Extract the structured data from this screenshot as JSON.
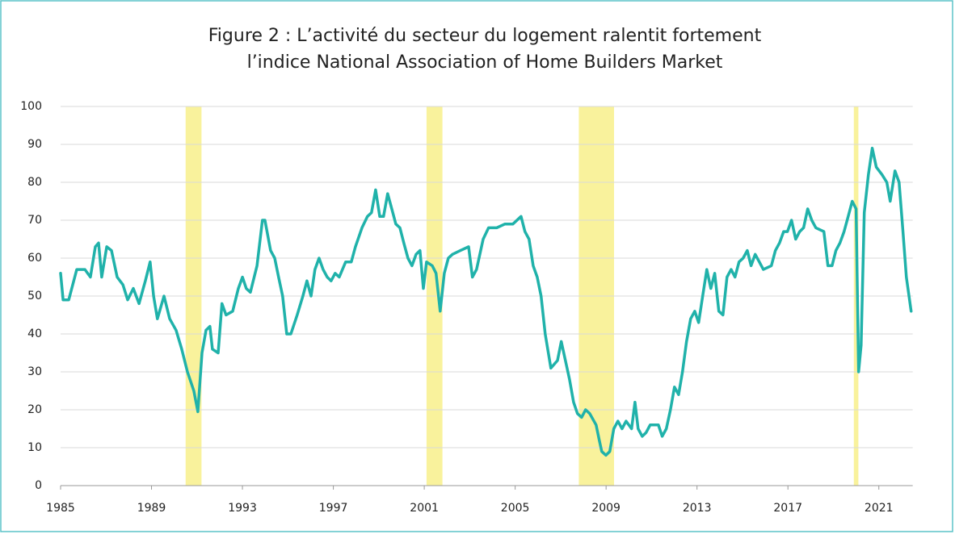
{
  "chart_data": {
    "type": "line",
    "title": [
      "Figure 2 : L’activité du secteur du logement ralentit fortement",
      "l’indice National Association of Home Builders Market"
    ],
    "x": [
      1985.0,
      1985.11,
      1985.36,
      1985.71,
      1986.07,
      1986.31,
      1986.53,
      1986.67,
      1986.81,
      1987.03,
      1987.24,
      1987.49,
      1987.74,
      1987.95,
      1988.2,
      1988.45,
      1988.73,
      1988.94,
      1989.09,
      1989.26,
      1989.55,
      1989.8,
      1990.08,
      1990.33,
      1990.58,
      1990.86,
      1991.04,
      1991.22,
      1991.4,
      1991.57,
      1991.68,
      1991.93,
      1992.1,
      1992.28,
      1992.57,
      1992.82,
      1993.0,
      1993.17,
      1993.35,
      1993.64,
      1993.88,
      1993.99,
      1994.24,
      1994.42,
      1994.59,
      1994.77,
      1994.95,
      1995.13,
      1995.41,
      1995.66,
      1995.84,
      1996.02,
      1996.19,
      1996.37,
      1996.55,
      1996.73,
      1996.9,
      1997.08,
      1997.26,
      1997.54,
      1997.79,
      1997.97,
      1998.26,
      1998.5,
      1998.68,
      1998.86,
      1999.04,
      1999.21,
      1999.39,
      1999.57,
      1999.75,
      1999.93,
      2000.1,
      2000.28,
      2000.46,
      2000.64,
      2000.81,
      2000.96,
      2001.1,
      2001.35,
      2001.52,
      2001.7,
      2001.88,
      2002.06,
      2002.24,
      2002.59,
      2002.95,
      2003.12,
      2003.3,
      2003.59,
      2003.83,
      2004.19,
      2004.55,
      2004.9,
      2005.26,
      2005.43,
      2005.61,
      2005.79,
      2005.97,
      2006.14,
      2006.32,
      2006.57,
      2006.86,
      2007.03,
      2007.21,
      2007.39,
      2007.57,
      2007.74,
      2007.92,
      2008.1,
      2008.28,
      2008.56,
      2008.7,
      2008.81,
      2008.99,
      2009.16,
      2009.34,
      2009.52,
      2009.7,
      2009.88,
      2010.12,
      2010.27,
      2010.41,
      2010.59,
      2010.76,
      2010.94,
      2011.3,
      2011.47,
      2011.65,
      2011.83,
      2012.01,
      2012.19,
      2012.36,
      2012.54,
      2012.72,
      2012.9,
      2013.07,
      2013.25,
      2013.43,
      2013.61,
      2013.78,
      2013.96,
      2014.14,
      2014.32,
      2014.5,
      2014.67,
      2014.85,
      2015.03,
      2015.21,
      2015.38,
      2015.56,
      2015.74,
      2015.92,
      2016.27,
      2016.45,
      2016.63,
      2016.81,
      2016.98,
      2017.16,
      2017.34,
      2017.52,
      2017.69,
      2017.87,
      2018.05,
      2018.23,
      2018.58,
      2018.76,
      2018.94,
      2019.11,
      2019.29,
      2019.47,
      2019.65,
      2019.83,
      2020.0,
      2020.11,
      2020.22,
      2020.36,
      2020.54,
      2020.71,
      2020.89,
      2021.14,
      2021.35,
      2021.5,
      2021.71,
      2021.89,
      2022.06,
      2022.21,
      2022.42
    ],
    "values": [
      56,
      49,
      49,
      57,
      57,
      55,
      63,
      64,
      55,
      63,
      62,
      55,
      53,
      49,
      52,
      48,
      54,
      59,
      50,
      44,
      50,
      44,
      41,
      36,
      30,
      25,
      19.5,
      35,
      41,
      42,
      36,
      35,
      48,
      45,
      46,
      52,
      55,
      52,
      51,
      58,
      70,
      70,
      62,
      60,
      55,
      50,
      40,
      40,
      45,
      50,
      54,
      50,
      57,
      60,
      57,
      55,
      54,
      56,
      55,
      59,
      59,
      63,
      68,
      71,
      72,
      78,
      71,
      71,
      77,
      73,
      69,
      68,
      64,
      60,
      58,
      61,
      62,
      52,
      59,
      58,
      56,
      46,
      56,
      60,
      61,
      62,
      63,
      55,
      57,
      65,
      68,
      68,
      69,
      69,
      71,
      67,
      65,
      58,
      55,
      50,
      40,
      31,
      33,
      38,
      33,
      28,
      22,
      19,
      18,
      20,
      19,
      16,
      12,
      9,
      8,
      9,
      15,
      17,
      15,
      17,
      15,
      22,
      15,
      13,
      14,
      16,
      16,
      13,
      15,
      20,
      26,
      24,
      30,
      38,
      44,
      46,
      43,
      50,
      57,
      52,
      56,
      46,
      45,
      55,
      57,
      55,
      59,
      60,
      62,
      58,
      61,
      59,
      57,
      58,
      62,
      64,
      67,
      67,
      70,
      65,
      67,
      68,
      73,
      70,
      68,
      67,
      58,
      58,
      62,
      64,
      67,
      71,
      75,
      73,
      30,
      37,
      72,
      82,
      89,
      84,
      82,
      80,
      75,
      83,
      80,
      67,
      55,
      46
    ],
    "color": "#20b2aa",
    "shaded_regions": [
      [
        1990.5,
        1991.2
      ],
      [
        2001.1,
        2001.8
      ],
      [
        2007.8,
        2009.35
      ],
      [
        2019.9,
        2020.1
      ]
    ],
    "shade_color": "#f9f29c",
    "xlim": [
      1985,
      2023
    ],
    "xticks": [
      1985,
      1989,
      1993,
      1997,
      2001,
      2005,
      2009,
      2013,
      2017,
      2021
    ],
    "ylim": [
      0,
      100
    ],
    "yticks": [
      0,
      10,
      20,
      30,
      40,
      50,
      60,
      70,
      80,
      90,
      100
    ],
    "grid": true
  }
}
